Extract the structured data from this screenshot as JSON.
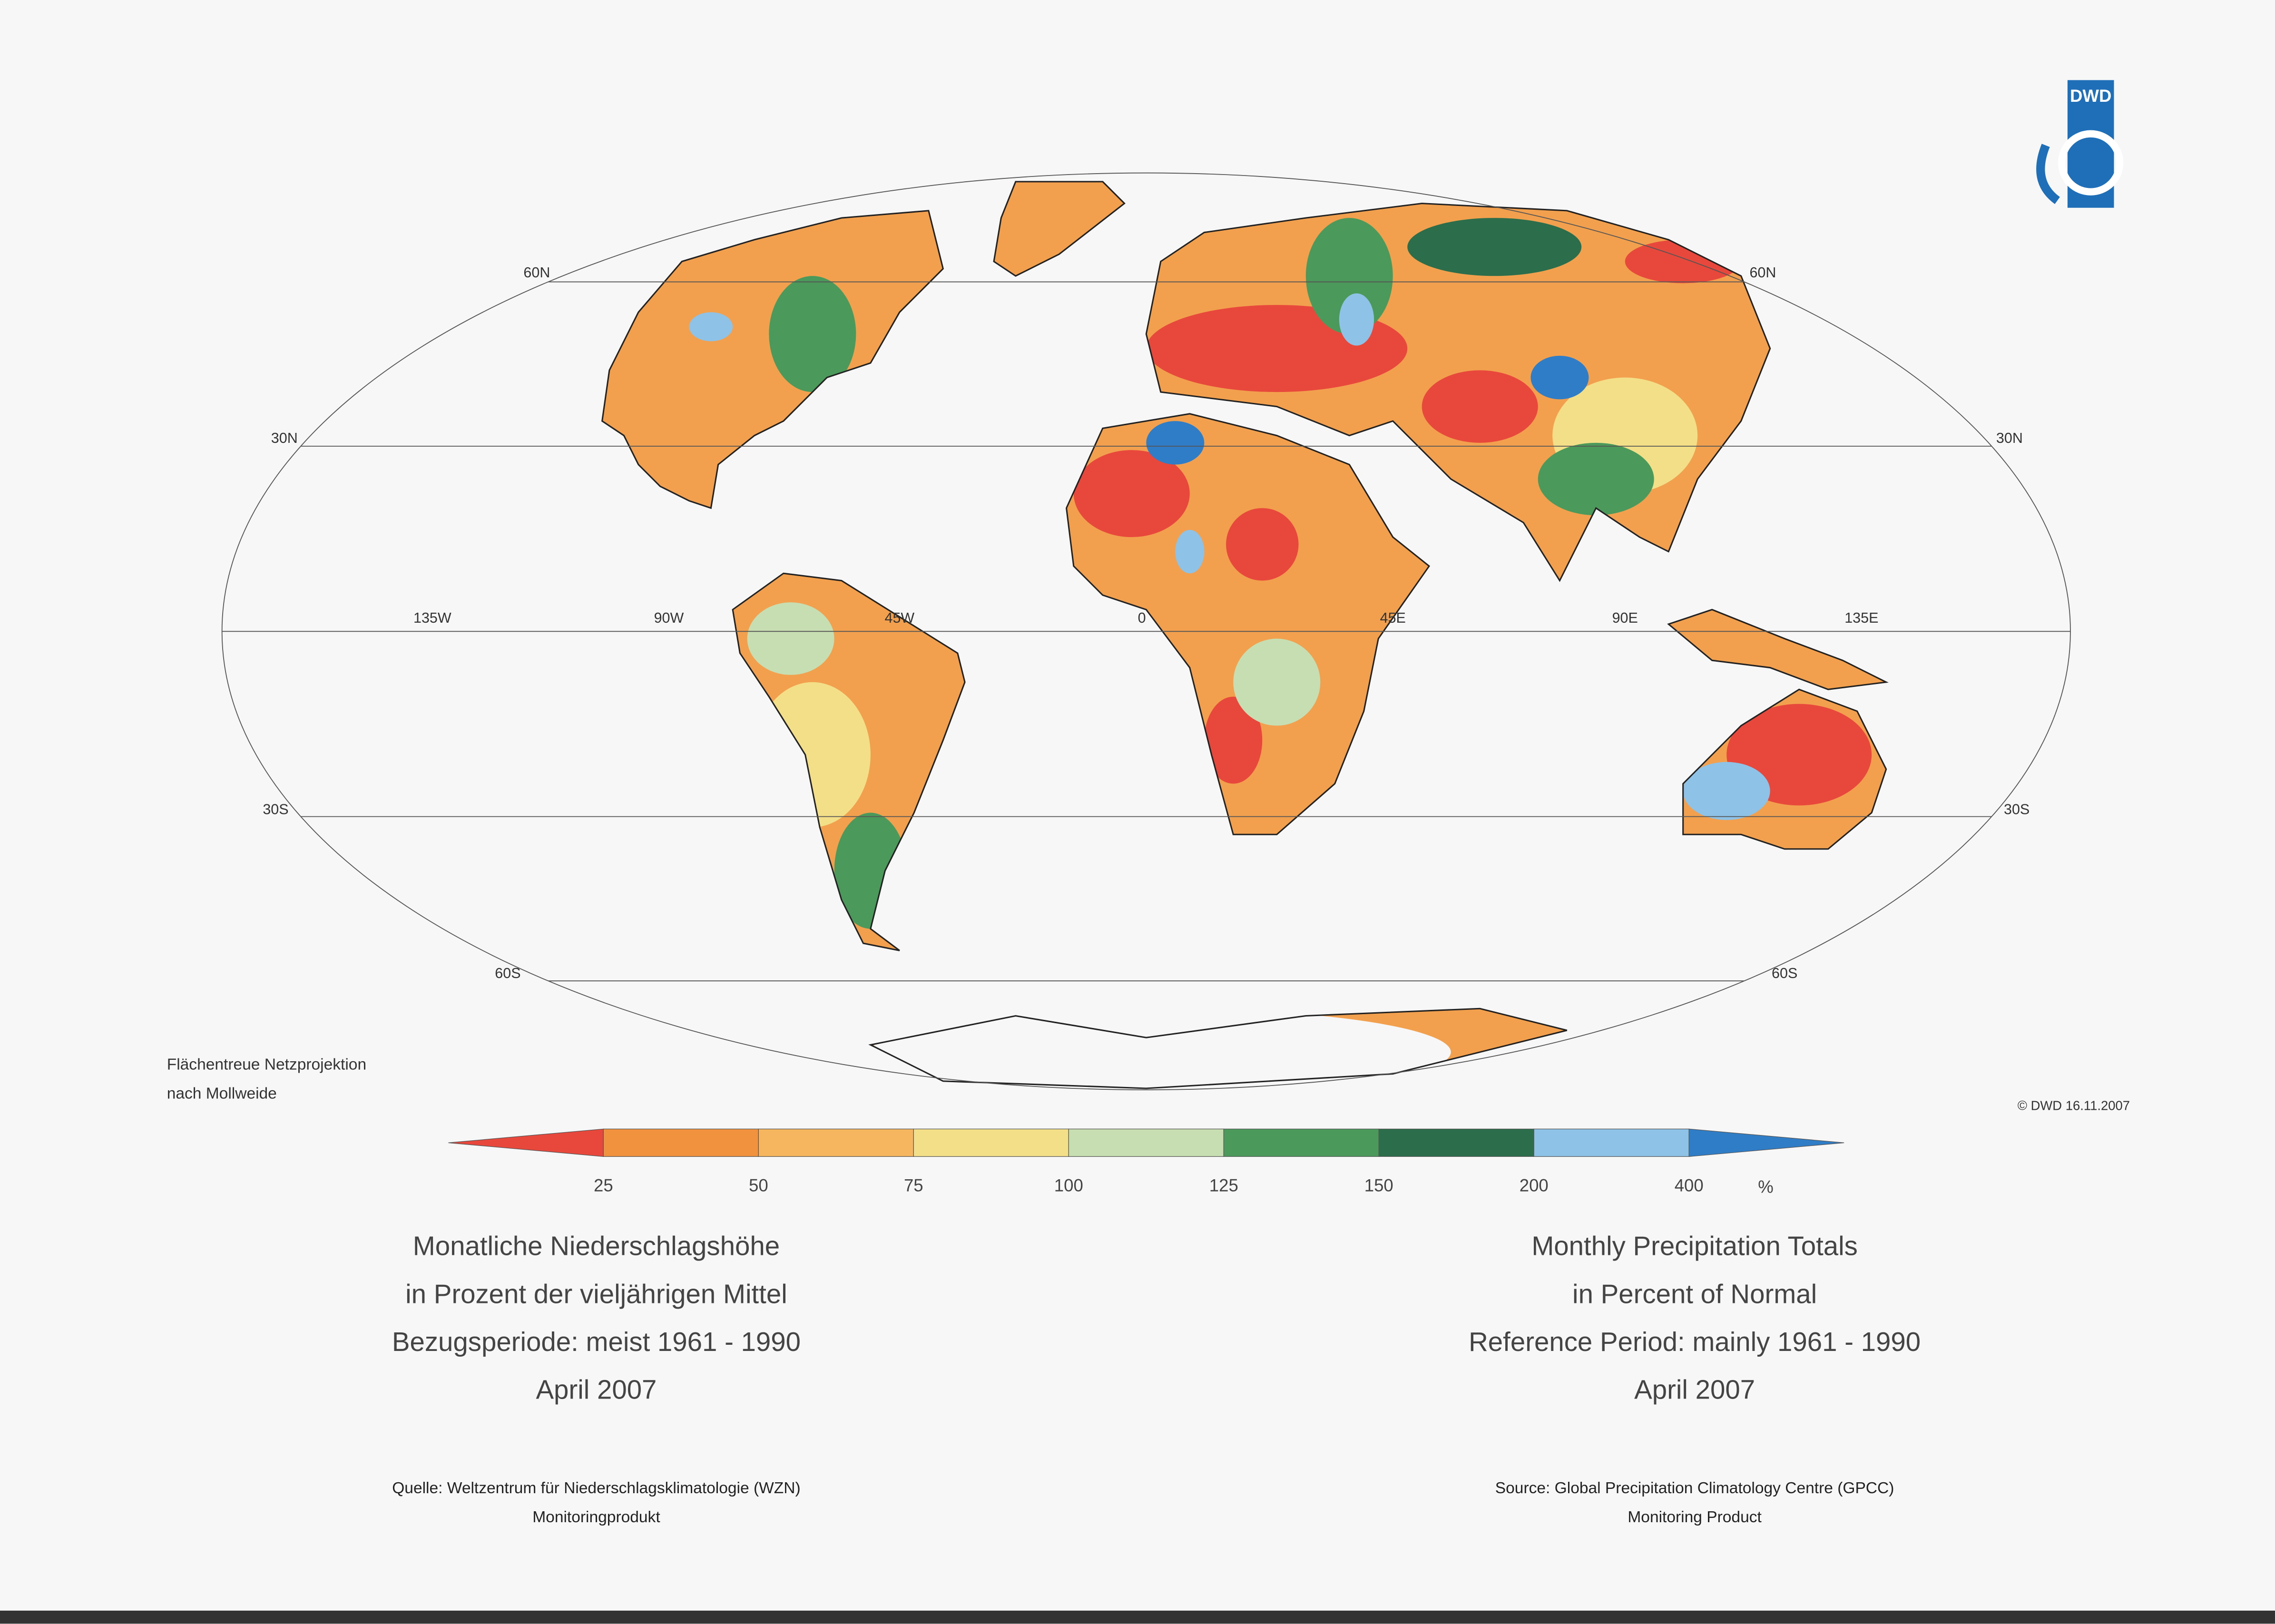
{
  "logo": {
    "text": "DWD"
  },
  "map": {
    "projection_note": [
      "Flächentreue Netzprojektion",
      "nach Mollweide"
    ],
    "latitude_labels": [
      "60N",
      "30N",
      "30S",
      "60S"
    ],
    "longitude_labels": [
      "135W",
      "90W",
      "45W",
      "0",
      "45E",
      "90E",
      "135E"
    ],
    "copyright": "© DWD 16.11.2007"
  },
  "legend": {
    "ticks": [
      25,
      50,
      75,
      100,
      125,
      150,
      200,
      400
    ],
    "unit": "%",
    "colors": [
      "#e8483b",
      "#f1923f",
      "#f6b55f",
      "#f3df88",
      "#c6deb1",
      "#4b9a5b",
      "#2c6e4b",
      "#8ec2e6",
      "#2f7dc6"
    ]
  },
  "title_de": {
    "lines": [
      "Monatliche Niederschlagshöhe",
      "in Prozent der vieljährigen Mittel",
      "Bezugsperiode: meist 1961 - 1990",
      "April 2007"
    ]
  },
  "title_en": {
    "lines": [
      "Monthly Precipitation Totals",
      "in Percent of Normal",
      "Reference Period: mainly 1961 - 1990",
      "April 2007"
    ]
  },
  "source_de": {
    "lines": [
      "Quelle: Weltzentrum für Niederschlagsklimatologie (WZN)",
      "Monitoringprodukt"
    ]
  },
  "source_en": {
    "lines": [
      "Source: Global Precipitation Climatology Centre (GPCC)",
      "Monitoring Product"
    ]
  }
}
